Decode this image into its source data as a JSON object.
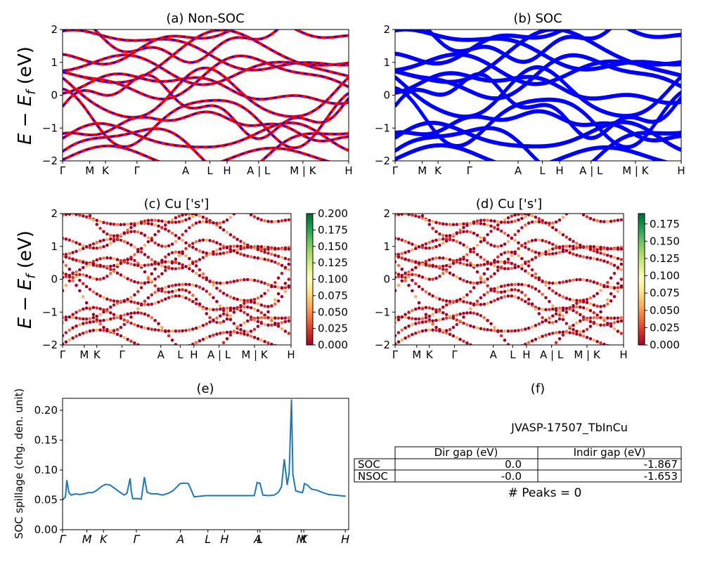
{
  "material": "JVASP-17507_TbInCu",
  "chart_data": [
    {
      "type": "line",
      "title": "(a) Non-SOC",
      "xlabel": "",
      "ylabel": "E − E_f (eV)",
      "ylim": [
        -2,
        2
      ],
      "yticks": [
        -2,
        -1,
        0,
        1,
        2
      ],
      "kpath_ticks": [
        {
          "label": "Γ",
          "x": 0.0
        },
        {
          "label": "M",
          "x": 0.095
        },
        {
          "label": "K",
          "x": 0.15
        },
        {
          "label": "Γ",
          "x": 0.26
        },
        {
          "label": "A",
          "x": 0.43
        },
        {
          "label": "L",
          "x": 0.515
        },
        {
          "label": "H",
          "x": 0.575
        },
        {
          "label": "A | L",
          "x": 0.685
        },
        {
          "label": "M | K",
          "x": 0.84
        },
        {
          "label": "H",
          "x": 1.0
        }
      ],
      "series": [
        {
          "color": "#ff0000",
          "style": "solid",
          "role": "spin up"
        },
        {
          "color": "#0000ff",
          "style": "dashed",
          "role": "spin down"
        }
      ]
    },
    {
      "type": "line",
      "title": "(b) SOC",
      "ylim": [
        -2,
        2
      ],
      "yticks": [
        -2,
        -1,
        0,
        1,
        2
      ],
      "kpath_ticks": [
        {
          "label": "Γ",
          "x": 0.0
        },
        {
          "label": "M",
          "x": 0.095
        },
        {
          "label": "K",
          "x": 0.15
        },
        {
          "label": "Γ",
          "x": 0.26
        },
        {
          "label": "A",
          "x": 0.43
        },
        {
          "label": "L",
          "x": 0.515
        },
        {
          "label": "H",
          "x": 0.575
        },
        {
          "label": "A | L",
          "x": 0.685
        },
        {
          "label": "M | K",
          "x": 0.84
        },
        {
          "label": "H",
          "x": 1.0
        }
      ],
      "series": [
        {
          "color": "#0000ff",
          "style": "solid"
        }
      ]
    },
    {
      "type": "scatter",
      "title": "(c)  Cu ['s']",
      "ylabel": "E − E_f (eV)",
      "ylim": [
        -2,
        2
      ],
      "yticks": [
        -2,
        -1,
        0,
        1,
        2
      ],
      "colormap": "RdYlGn",
      "colorbar_ticks": [
        "0.000",
        "0.025",
        "0.050",
        "0.075",
        "0.100",
        "0.125",
        "0.150",
        "0.175",
        "0.200"
      ],
      "kpath_ticks": [
        {
          "label": "Γ",
          "x": 0.0
        },
        {
          "label": "M",
          "x": 0.095
        },
        {
          "label": "K",
          "x": 0.15
        },
        {
          "label": "Γ",
          "x": 0.26
        },
        {
          "label": "A",
          "x": 0.43
        },
        {
          "label": "L",
          "x": 0.515
        },
        {
          "label": "H",
          "x": 0.575
        },
        {
          "label": "A | L",
          "x": 0.685
        },
        {
          "label": "M | K",
          "x": 0.84
        },
        {
          "label": "H",
          "x": 1.0
        }
      ]
    },
    {
      "type": "scatter",
      "title": "(d) Cu ['s']",
      "ylim": [
        -2,
        2
      ],
      "yticks": [
        -2,
        -1,
        0,
        1,
        2
      ],
      "colormap": "RdYlGn",
      "colorbar_ticks": [
        "0.000",
        "0.025",
        "0.050",
        "0.075",
        "0.100",
        "0.125",
        "0.150",
        "0.175"
      ],
      "kpath_ticks": [
        {
          "label": "Γ",
          "x": 0.0
        },
        {
          "label": "M",
          "x": 0.095
        },
        {
          "label": "K",
          "x": 0.15
        },
        {
          "label": "Γ",
          "x": 0.26
        },
        {
          "label": "A",
          "x": 0.43
        },
        {
          "label": "L",
          "x": 0.515
        },
        {
          "label": "H",
          "x": 0.575
        },
        {
          "label": "A | L",
          "x": 0.685
        },
        {
          "label": "M | K",
          "x": 0.84
        },
        {
          "label": "H",
          "x": 1.0
        }
      ]
    },
    {
      "type": "line",
      "title": "(e)",
      "ylabel": "SOC spillage (chg. den. unit)",
      "ylim": [
        0,
        0.22
      ],
      "yticks": [
        0.0,
        0.05,
        0.1,
        0.15,
        0.2
      ],
      "ytick_labels": [
        "0.00",
        "0.05",
        "0.10",
        "0.15",
        "0.20"
      ],
      "xticks": [
        {
          "label": "Γ",
          "x": 0.0
        },
        {
          "label": "M",
          "x": 0.085
        },
        {
          "label": "K",
          "x": 0.143
        },
        {
          "label": "Γ",
          "x": 0.258
        },
        {
          "label": "A",
          "x": 0.412
        },
        {
          "label": "L",
          "x": 0.508
        },
        {
          "label": "H",
          "x": 0.566
        },
        {
          "label": "A",
          "x": 0.682
        },
        {
          "label": "L",
          "x": 0.69
        },
        {
          "label": "M",
          "x": 0.834
        },
        {
          "label": "K",
          "x": 0.843
        },
        {
          "label": "H",
          "x": 0.988
        }
      ],
      "series": [
        {
          "color": "#1f77b4",
          "x": [
            0.0,
            0.01,
            0.015,
            0.022,
            0.03,
            0.045,
            0.06,
            0.075,
            0.09,
            0.105,
            0.12,
            0.135,
            0.15,
            0.165,
            0.18,
            0.2,
            0.215,
            0.225,
            0.236,
            0.24,
            0.245,
            0.265,
            0.275,
            0.28,
            0.286,
            0.295,
            0.31,
            0.33,
            0.35,
            0.37,
            0.385,
            0.4,
            0.41,
            0.42,
            0.43,
            0.44,
            0.46,
            0.5,
            0.55,
            0.6,
            0.65,
            0.67,
            0.68,
            0.685,
            0.69,
            0.7,
            0.72,
            0.74,
            0.755,
            0.765,
            0.775,
            0.785,
            0.792,
            0.8,
            0.805,
            0.815,
            0.83,
            0.838,
            0.842,
            0.845,
            0.855,
            0.87,
            0.89,
            0.91,
            0.93,
            0.95,
            0.97,
            0.99
          ],
          "y": [
            0.05,
            0.055,
            0.083,
            0.062,
            0.058,
            0.06,
            0.059,
            0.06,
            0.062,
            0.062,
            0.066,
            0.072,
            0.076,
            0.075,
            0.07,
            0.063,
            0.058,
            0.061,
            0.086,
            0.065,
            0.052,
            0.052,
            0.051,
            0.068,
            0.088,
            0.063,
            0.06,
            0.06,
            0.058,
            0.061,
            0.065,
            0.072,
            0.077,
            0.078,
            0.078,
            0.077,
            0.055,
            0.057,
            0.057,
            0.057,
            0.057,
            0.057,
            0.079,
            0.078,
            0.078,
            0.058,
            0.057,
            0.058,
            0.063,
            0.072,
            0.118,
            0.075,
            0.095,
            0.218,
            0.093,
            0.065,
            0.063,
            0.062,
            0.068,
            0.077,
            0.075,
            0.068,
            0.066,
            0.062,
            0.059,
            0.058,
            0.057,
            0.056
          ]
        }
      ]
    }
  ],
  "panel_f": {
    "title": "(f)",
    "label": "JVASP-17507_TbInCu",
    "columns": [
      "",
      "Dir gap (eV)",
      "Indir gap (eV)"
    ],
    "rows": [
      [
        "SOC",
        "0.0",
        "-1.867"
      ],
      [
        "NSOC",
        "-0.0",
        "-1.653"
      ]
    ],
    "peaks_text": "# Peaks = 0"
  }
}
